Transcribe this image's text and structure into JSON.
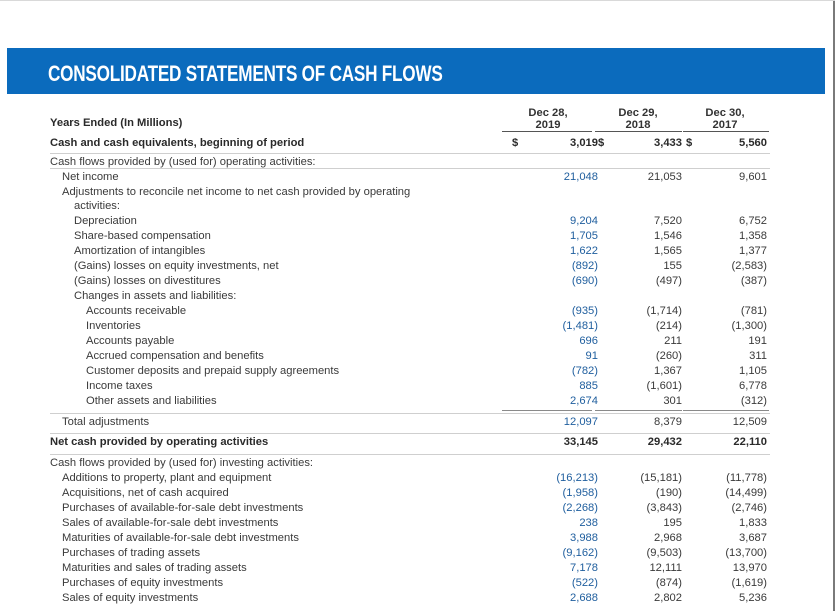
{
  "title": "CONSOLIDATED STATEMENTS OF CASH FLOWS",
  "headers": {
    "label": "Years Ended (In Millions)",
    "col1": [
      "Dec 28,",
      "2019"
    ],
    "col2": [
      "Dec 29,",
      "2018"
    ],
    "col3": [
      "Dec 30,",
      "2017"
    ]
  },
  "currency_symbol": "$",
  "rows": [
    {
      "label": "Cash and cash equivalents, beginning of period",
      "v": [
        "3,019",
        "3,433",
        "5,560"
      ]
    },
    {
      "label": "Cash flows provided by (used for) operating activities:",
      "v": [
        "",
        "",
        ""
      ]
    },
    {
      "label": "Net income",
      "v": [
        "21,048",
        "21,053",
        "9,601"
      ]
    },
    {
      "label": "Adjustments to reconcile net income to net cash provided by operating",
      "v": [
        "",
        "",
        ""
      ]
    },
    {
      "label": "activities:",
      "v": [
        "",
        "",
        ""
      ]
    },
    {
      "label": "Depreciation",
      "v": [
        "9,204",
        "7,520",
        "6,752"
      ]
    },
    {
      "label": "Share-based compensation",
      "v": [
        "1,705",
        "1,546",
        "1,358"
      ]
    },
    {
      "label": "Amortization of intangibles",
      "v": [
        "1,622",
        "1,565",
        "1,377"
      ]
    },
    {
      "label": "(Gains) losses on equity investments, net",
      "v": [
        "(892)",
        "155",
        "(2,583)"
      ]
    },
    {
      "label": "(Gains) losses on divestitures",
      "v": [
        "(690)",
        "(497)",
        "(387)"
      ]
    },
    {
      "label": "Changes in assets and liabilities:",
      "v": [
        "",
        "",
        ""
      ]
    },
    {
      "label": "Accounts receivable",
      "v": [
        "(935)",
        "(1,714)",
        "(781)"
      ]
    },
    {
      "label": "Inventories",
      "v": [
        "(1,481)",
        "(214)",
        "(1,300)"
      ]
    },
    {
      "label": "Accounts payable",
      "v": [
        "696",
        "211",
        "191"
      ]
    },
    {
      "label": "Accrued compensation and benefits",
      "v": [
        "91",
        "(260)",
        "311"
      ]
    },
    {
      "label": "Customer deposits and prepaid supply agreements",
      "v": [
        "(782)",
        "1,367",
        "1,105"
      ]
    },
    {
      "label": "Income taxes",
      "v": [
        "885",
        "(1,601)",
        "6,778"
      ]
    },
    {
      "label": "Other assets and liabilities",
      "v": [
        "2,674",
        "301",
        "(312)"
      ]
    },
    {
      "label": "Total adjustments",
      "v": [
        "12,097",
        "8,379",
        "12,509"
      ]
    },
    {
      "label": "Net cash provided by operating activities",
      "v": [
        "33,145",
        "29,432",
        "22,110"
      ]
    },
    {
      "label": "Cash flows provided by (used for) investing activities:",
      "v": [
        "",
        "",
        ""
      ]
    },
    {
      "label": "Additions to property, plant and equipment",
      "v": [
        "(16,213)",
        "(15,181)",
        "(11,778)"
      ]
    },
    {
      "label": "Acquisitions, net of cash acquired",
      "v": [
        "(1,958)",
        "(190)",
        "(14,499)"
      ]
    },
    {
      "label": "Purchases of available-for-sale debt investments",
      "v": [
        "(2,268)",
        "(3,843)",
        "(2,746)"
      ]
    },
    {
      "label": "Sales of available-for-sale debt investments",
      "v": [
        "238",
        "195",
        "1,833"
      ]
    },
    {
      "label": "Maturities of available-for-sale debt investments",
      "v": [
        "3,988",
        "2,968",
        "3,687"
      ]
    },
    {
      "label": "Purchases of trading assets",
      "v": [
        "(9,162)",
        "(9,503)",
        "(13,700)"
      ]
    },
    {
      "label": "Maturities and sales of trading assets",
      "v": [
        "7,178",
        "12,111",
        "13,970"
      ]
    },
    {
      "label": "Purchases of equity investments",
      "v": [
        "(522)",
        "(874)",
        "(1,619)"
      ]
    },
    {
      "label": "Sales of equity investments",
      "v": [
        "2,688",
        "2,802",
        "5,236"
      ]
    }
  ]
}
